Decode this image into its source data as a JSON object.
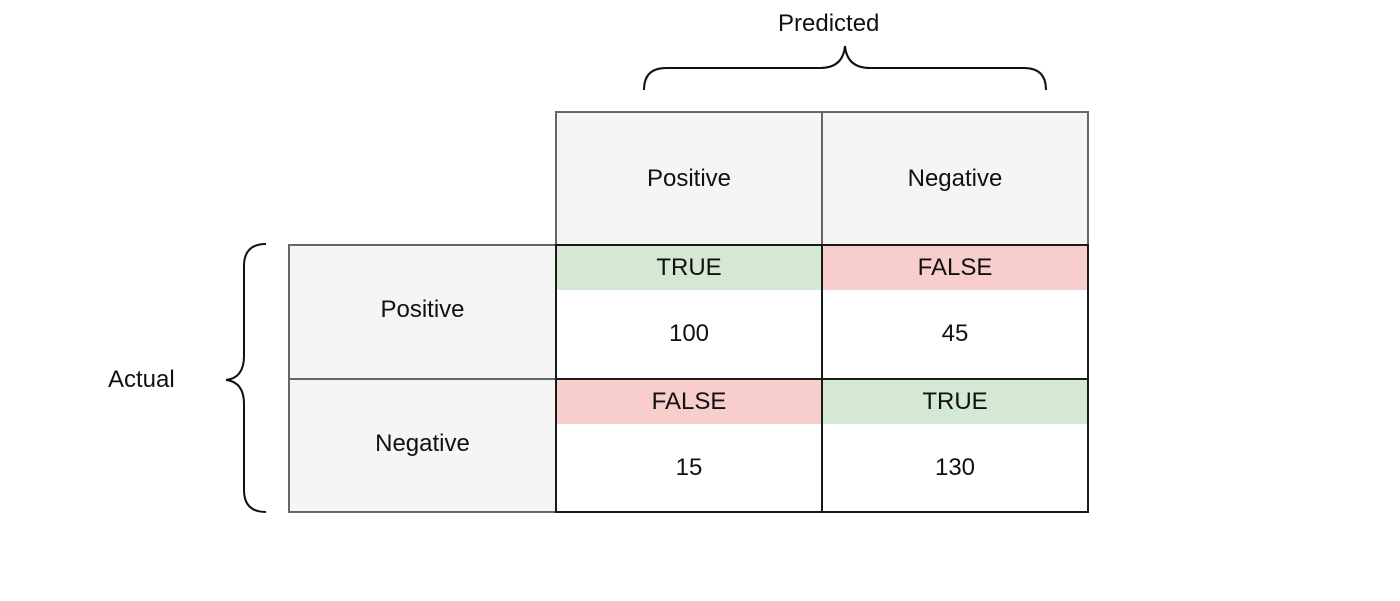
{
  "axes": {
    "predicted_label": "Predicted",
    "actual_label": "Actual"
  },
  "columns": {
    "positive": "Positive",
    "negative": "Negative"
  },
  "rows": {
    "positive": "Positive",
    "negative": "Negative"
  },
  "cells": {
    "pp": {
      "outcome": "TRUE",
      "count": "100"
    },
    "pn": {
      "outcome": "FALSE",
      "count": "45"
    },
    "np": {
      "outcome": "FALSE",
      "count": "15"
    },
    "nn": {
      "outcome": "TRUE",
      "count": "130"
    }
  },
  "colors": {
    "true_fill": "#d5e8d4",
    "false_fill": "#f8cecc",
    "header_fill": "#f5f5f5"
  }
}
